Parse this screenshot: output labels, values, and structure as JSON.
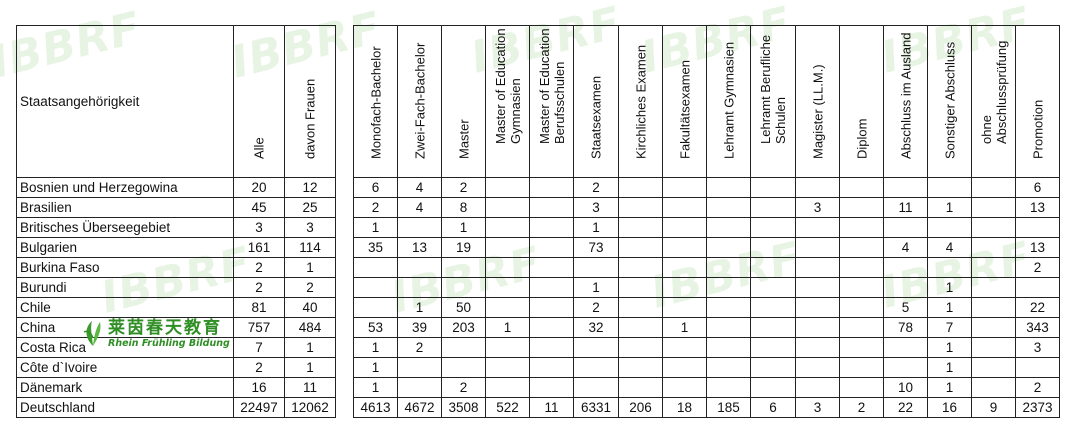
{
  "watermark": "IBBRF",
  "logo": {
    "chinese": "莱茵春天教育",
    "english": "Rhein Frühling Bildung"
  },
  "left_table": {
    "header": {
      "label": "Staatsangehörigkeit",
      "all": "Alle",
      "women": "davon Frauen"
    },
    "rows": [
      {
        "country": "Bosnien und Herzegowina",
        "all": "20",
        "women": "12"
      },
      {
        "country": "Brasilien",
        "all": "45",
        "women": "25"
      },
      {
        "country": "Britisches Überseegebiet",
        "all": "3",
        "women": "3"
      },
      {
        "country": "Bulgarien",
        "all": "161",
        "women": "114"
      },
      {
        "country": "Burkina Faso",
        "all": "2",
        "women": "1"
      },
      {
        "country": "Burundi",
        "all": "2",
        "women": "2"
      },
      {
        "country": "Chile",
        "all": "81",
        "women": "40"
      },
      {
        "country": "China",
        "all": "757",
        "women": "484"
      },
      {
        "country": "Costa Rica",
        "all": "7",
        "women": "1"
      },
      {
        "country": "Côte d`Ivoire",
        "all": "2",
        "women": "1"
      },
      {
        "country": "Dänemark",
        "all": "16",
        "women": "11"
      },
      {
        "country": "Deutschland",
        "all": "22497",
        "women": "12062"
      }
    ]
  },
  "right_table": {
    "headers": [
      [
        "Monofach-Bachelor"
      ],
      [
        "Zwei-Fach-Bachelor"
      ],
      [
        "Master"
      ],
      [
        "Master of Education",
        "Gymnasien"
      ],
      [
        "Master of Education",
        "Berufsschulen"
      ],
      [
        "Staatsexamen"
      ],
      [
        "Kirchliches Examen"
      ],
      [
        "Fakultätsexamen"
      ],
      [
        "Lehramt Gymnasien"
      ],
      [
        "Lehramt Berufliche",
        "Schulen"
      ],
      [
        "Magister (LL.M.)"
      ],
      [
        "Diplom"
      ],
      [
        "Abschluss im Ausland"
      ],
      [
        "Sonstiger Abschluss"
      ],
      [
        "ohne",
        "Abschlussprüfung"
      ],
      [
        "Promotion"
      ]
    ],
    "rows": [
      [
        "6",
        "4",
        "2",
        "",
        "",
        "2",
        "",
        "",
        "",
        "",
        "",
        "",
        "",
        "",
        "",
        "6"
      ],
      [
        "2",
        "4",
        "8",
        "",
        "",
        "3",
        "",
        "",
        "",
        "",
        "3",
        "",
        "11",
        "1",
        "",
        "13"
      ],
      [
        "1",
        "",
        "1",
        "",
        "",
        "1",
        "",
        "",
        "",
        "",
        "",
        "",
        "",
        "",
        "",
        ""
      ],
      [
        "35",
        "13",
        "19",
        "",
        "",
        "73",
        "",
        "",
        "",
        "",
        "",
        "",
        "4",
        "4",
        "",
        "13"
      ],
      [
        "",
        "",
        "",
        "",
        "",
        "",
        "",
        "",
        "",
        "",
        "",
        "",
        "",
        "",
        "",
        "2"
      ],
      [
        "",
        "",
        "",
        "",
        "",
        "1",
        "",
        "",
        "",
        "",
        "",
        "",
        "",
        "1",
        "",
        ""
      ],
      [
        "",
        "1",
        "50",
        "",
        "",
        "2",
        "",
        "",
        "",
        "",
        "",
        "",
        "5",
        "1",
        "",
        "22"
      ],
      [
        "53",
        "39",
        "203",
        "1",
        "",
        "32",
        "",
        "1",
        "",
        "",
        "",
        "",
        "78",
        "7",
        "",
        "343"
      ],
      [
        "1",
        "2",
        "",
        "",
        "",
        "",
        "",
        "",
        "",
        "",
        "",
        "",
        "",
        "1",
        "",
        "3"
      ],
      [
        "1",
        "",
        "",
        "",
        "",
        "",
        "",
        "",
        "",
        "",
        "",
        "",
        "",
        "1",
        "",
        ""
      ],
      [
        "1",
        "",
        "2",
        "",
        "",
        "",
        "",
        "",
        "",
        "",
        "",
        "",
        "10",
        "1",
        "",
        "2"
      ],
      [
        "4613",
        "4672",
        "3508",
        "522",
        "11",
        "6331",
        "206",
        "18",
        "185",
        "6",
        "3",
        "2",
        "22",
        "16",
        "9",
        "2373"
      ]
    ]
  }
}
